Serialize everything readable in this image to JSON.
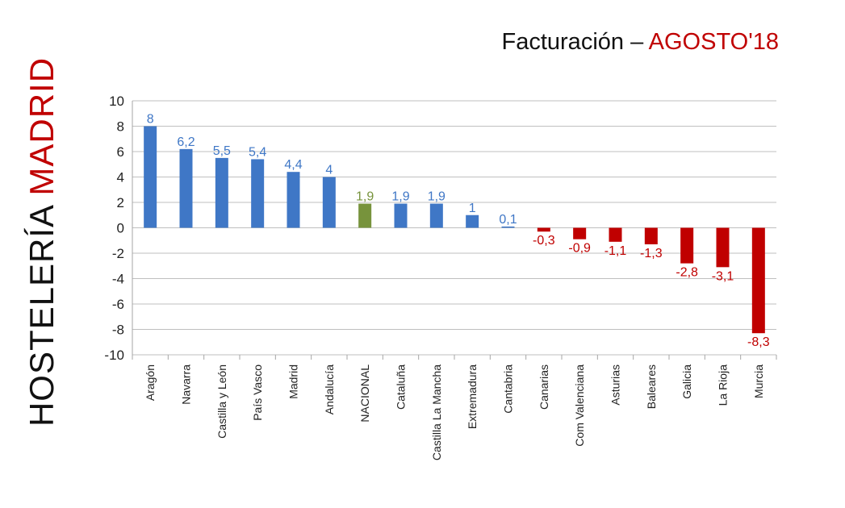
{
  "side_title": {
    "main": "HOSTELERÍA",
    "accent": "MADRID"
  },
  "title": {
    "prefix": "Facturación – ",
    "accent": "AGOSTO'18"
  },
  "colors": {
    "positive": "#3f77c6",
    "national": "#77933c",
    "negative": "#c00000",
    "title_accent": "#c00000",
    "grid": "#bfbfbf"
  },
  "chart_data": {
    "type": "bar",
    "categories": [
      "Aragón",
      "Navarra",
      "Castilla y León",
      "País Vasco",
      "Madrid",
      "Andalucía",
      "NACIONAL",
      "Cataluña",
      "Castilla La Mancha",
      "Extremadura",
      "Cantabria",
      "Canarias",
      "Com Valenciana",
      "Asturias",
      "Baleares",
      "Galicia",
      "La Rioja",
      "Murcia"
    ],
    "values": [
      8,
      6.2,
      5.5,
      5.4,
      4.4,
      4,
      1.9,
      1.9,
      1.9,
      1,
      0.1,
      -0.3,
      -0.9,
      -1.1,
      -1.3,
      -2.8,
      -3.1,
      -8.3
    ],
    "data_labels": [
      "8",
      "6,2",
      "5,5",
      "5,4",
      "4,4",
      "4",
      "1,9",
      "1,9",
      "1,9",
      "1",
      "0,1",
      "-0,3",
      "-0,9",
      "-1,1",
      "-1,3",
      "-2,8",
      "-3,1",
      "-8,3"
    ],
    "highlight_category": "NACIONAL",
    "ylim": [
      -10,
      10
    ],
    "yticks": [
      10,
      8,
      6,
      4,
      2,
      0,
      -2,
      -4,
      -6,
      -8,
      -10
    ],
    "grid": true,
    "legend": "none"
  }
}
